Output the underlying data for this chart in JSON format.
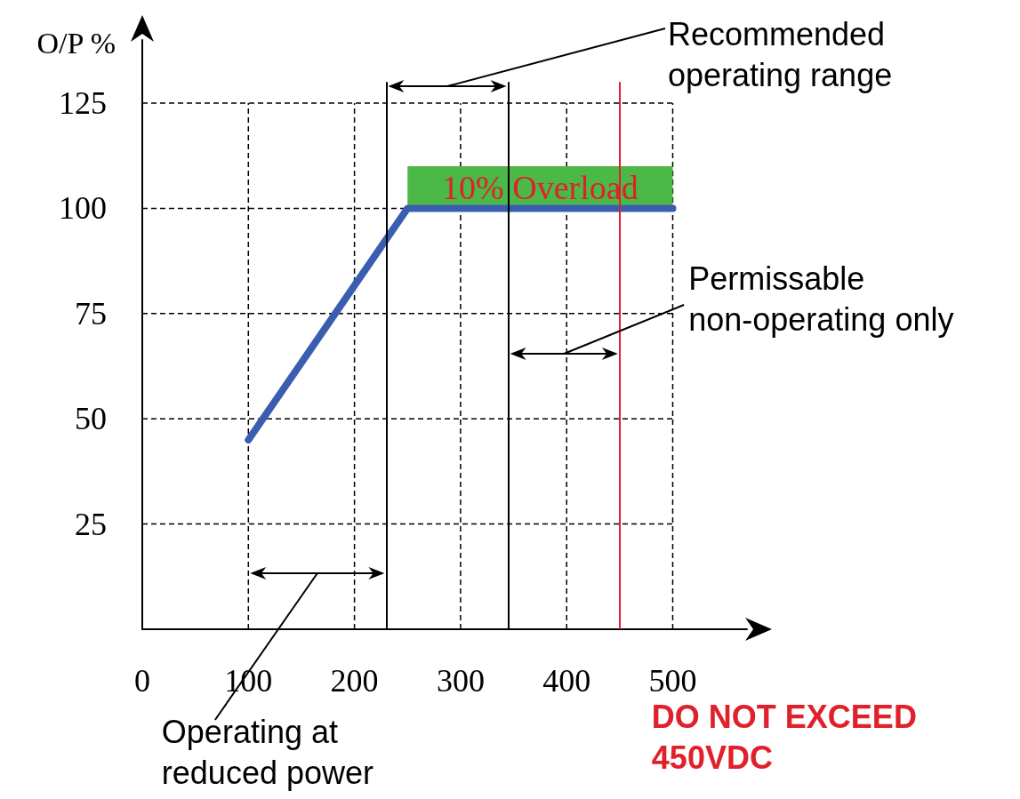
{
  "chart_data": {
    "type": "line",
    "ylabel": "O/P %",
    "x": [
      100,
      250,
      500
    ],
    "series": [
      {
        "color": "#3a5db0",
        "values": [
          45,
          100,
          100
        ]
      }
    ],
    "xlim": [
      0,
      570
    ],
    "ylim": [
      0,
      140
    ],
    "xticks": [
      0,
      100,
      200,
      300,
      400,
      500
    ],
    "yticks": [
      25,
      50,
      75,
      100,
      125
    ],
    "grid": true,
    "ref_lines": [
      {
        "axis": "x",
        "value": 230,
        "color": "#000000"
      },
      {
        "axis": "x",
        "value": 345,
        "color": "#000000"
      },
      {
        "axis": "x",
        "value": 450,
        "label": "DO NOT EXCEED 450VDC",
        "color": "#e0202a"
      }
    ],
    "bands": [
      {
        "axis": "y",
        "from": 100,
        "to": 110,
        "label": "10% Overload",
        "color": "#4cb848"
      }
    ],
    "annotations": [
      "Recommended operating range",
      "Permissable non-operating only",
      "Operating at reduced power"
    ]
  }
}
